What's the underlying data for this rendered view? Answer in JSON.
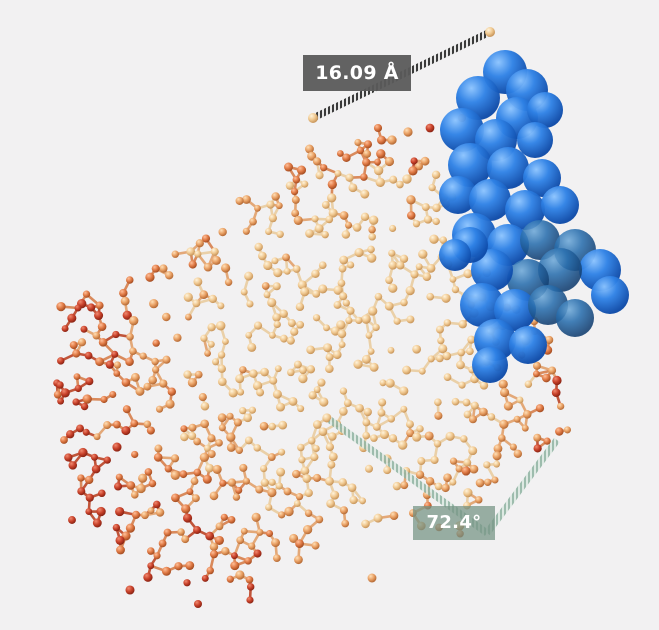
{
  "viewer": {
    "background": "#f2f1f2",
    "representation": "ball-and-stick",
    "highlight_representation": "spacefill",
    "highlight_color": "#1f6fd6",
    "palette": {
      "light": "#f0c890",
      "mid": "#e9a064",
      "orange": "#e07a45",
      "red": "#c8412a",
      "blue": "#1f6fd6",
      "distance_line": "#3a3a3a",
      "angle_line": "#8fb3a2"
    }
  },
  "measurements": {
    "distance": {
      "label": "16.09 Å",
      "color": "#5a5a5a"
    },
    "angle": {
      "label": "72.4°",
      "color": "#7d9a8c"
    }
  }
}
